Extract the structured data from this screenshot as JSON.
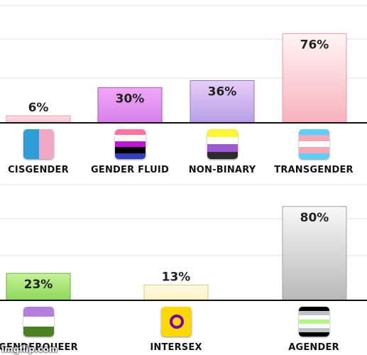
{
  "chart_data": [
    {
      "type": "bar",
      "categories": [
        "CISGENDER",
        "GENDER FLUID",
        "NON-BINARY",
        "TRANSGENDER"
      ],
      "values": [
        6,
        30,
        36,
        76
      ],
      "data_labels": [
        "6%",
        "30%",
        "36%",
        "76%"
      ],
      "ylim": [
        0,
        85
      ],
      "grid": true,
      "bar_colors": [
        [
          "#ffe0e8",
          "#f9c0ce"
        ],
        [
          "#f0a8f6",
          "#d880ec"
        ],
        [
          "#e8ccf8",
          "#b8a0e6"
        ],
        [
          "#fff4f6",
          "#f7b2bc"
        ]
      ],
      "bar_borders": [
        "#ea9bb0",
        "#b04fc4",
        "#8f78c8",
        "#e89aa6"
      ],
      "flags": [
        {
          "icon": "cisgender-flag-icon",
          "orientation": "vertical",
          "stripes": [
            "#2e9fd6",
            "#f1a9c3"
          ]
        },
        {
          "icon": "genderfluid-flag-icon",
          "orientation": "horizontal",
          "stripes": [
            "#ff75a2",
            "#ffffff",
            "#be18d6",
            "#000000",
            "#333ebd"
          ]
        },
        {
          "icon": "nonbinary-flag-icon",
          "orientation": "horizontal",
          "stripes": [
            "#fcf434",
            "#ffffff",
            "#9c59d1",
            "#2c2c2c"
          ]
        },
        {
          "icon": "transgender-flag-icon",
          "orientation": "horizontal",
          "stripes": [
            "#5bcefa",
            "#f5a9b8",
            "#ffffff",
            "#f5a9b8",
            "#5bcefa"
          ]
        }
      ]
    },
    {
      "type": "bar",
      "categories": [
        "GENDERQUEER",
        "INTERSEX",
        "AGENDER"
      ],
      "values": [
        23,
        13,
        80
      ],
      "data_labels": [
        "23%",
        "13%",
        "80%"
      ],
      "ylim": [
        0,
        85
      ],
      "grid": true,
      "bar_colors": [
        [
          "#c6f29a",
          "#8ed85a"
        ],
        [
          "#fffbe8",
          "#fff0c0"
        ],
        [
          "#f8f8f8",
          "#b8b8b8"
        ]
      ],
      "bar_borders": [
        "#6aa83a",
        "#e0c870",
        "#a0a0a0"
      ],
      "flags": [
        {
          "icon": "genderqueer-flag-icon",
          "orientation": "horizontal",
          "stripes": [
            "#b57edc",
            "#ffffff",
            "#4a8123"
          ]
        },
        {
          "icon": "intersex-flag-icon",
          "orientation": "ring",
          "stripes": [
            "#ffd800",
            "#7902aa"
          ]
        },
        {
          "icon": "agender-flag-icon",
          "orientation": "horizontal",
          "stripes": [
            "#000000",
            "#bcc4c7",
            "#ffffff",
            "#b7f684",
            "#ffffff",
            "#bcc4c7",
            "#000000"
          ]
        }
      ]
    }
  ],
  "watermark": "imgflip.com"
}
